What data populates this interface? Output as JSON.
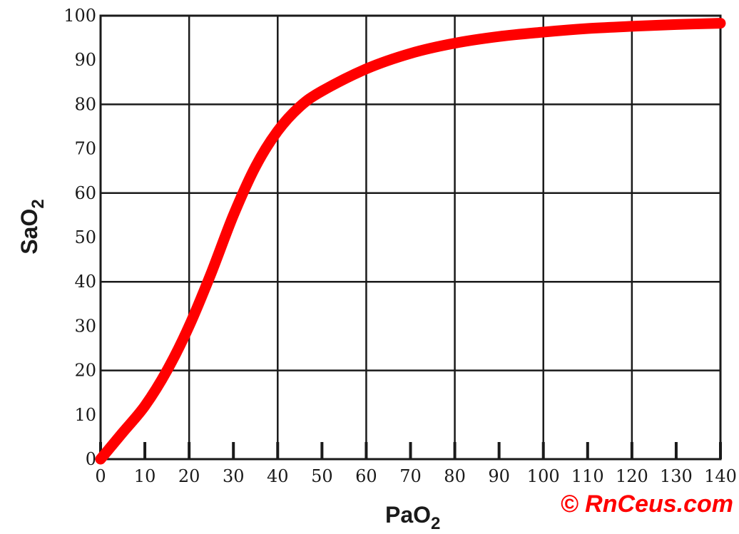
{
  "chart_data": {
    "type": "line",
    "xlabel": {
      "main": "PaO",
      "sub": "2"
    },
    "ylabel": {
      "main": "SaO",
      "sub": "2"
    },
    "xlim": [
      0,
      140
    ],
    "ylim": [
      0,
      100
    ],
    "x_major_ticks": [
      0,
      20,
      40,
      60,
      80,
      100,
      120,
      140
    ],
    "x_minor_ticks": [
      10,
      30,
      50,
      70,
      90,
      110,
      130
    ],
    "y_ticks": [
      0,
      10,
      20,
      30,
      40,
      50,
      60,
      70,
      80,
      90,
      100
    ],
    "x_tick_labels": [
      "0",
      "10",
      "20",
      "30",
      "40",
      "50",
      "60",
      "70",
      "80",
      "90",
      "100",
      "110",
      "120",
      "130",
      "140"
    ],
    "y_tick_labels": [
      "0",
      "10",
      "20",
      "30",
      "40",
      "50",
      "60",
      "70",
      "80",
      "90",
      "100"
    ],
    "grid": true,
    "series": [
      {
        "color": "#ff0000",
        "x": [
          0,
          5,
          10,
          15,
          20,
          25,
          30,
          35,
          40,
          45,
          50,
          60,
          70,
          80,
          90,
          100,
          110,
          120,
          130,
          140
        ],
        "y": [
          0,
          6,
          12,
          20,
          30,
          42,
          55,
          66,
          74,
          79.5,
          83,
          88,
          91.5,
          93.8,
          95.3,
          96.3,
          97.1,
          97.6,
          98,
          98.3
        ]
      }
    ]
  },
  "watermark": "© RnCeus.com"
}
